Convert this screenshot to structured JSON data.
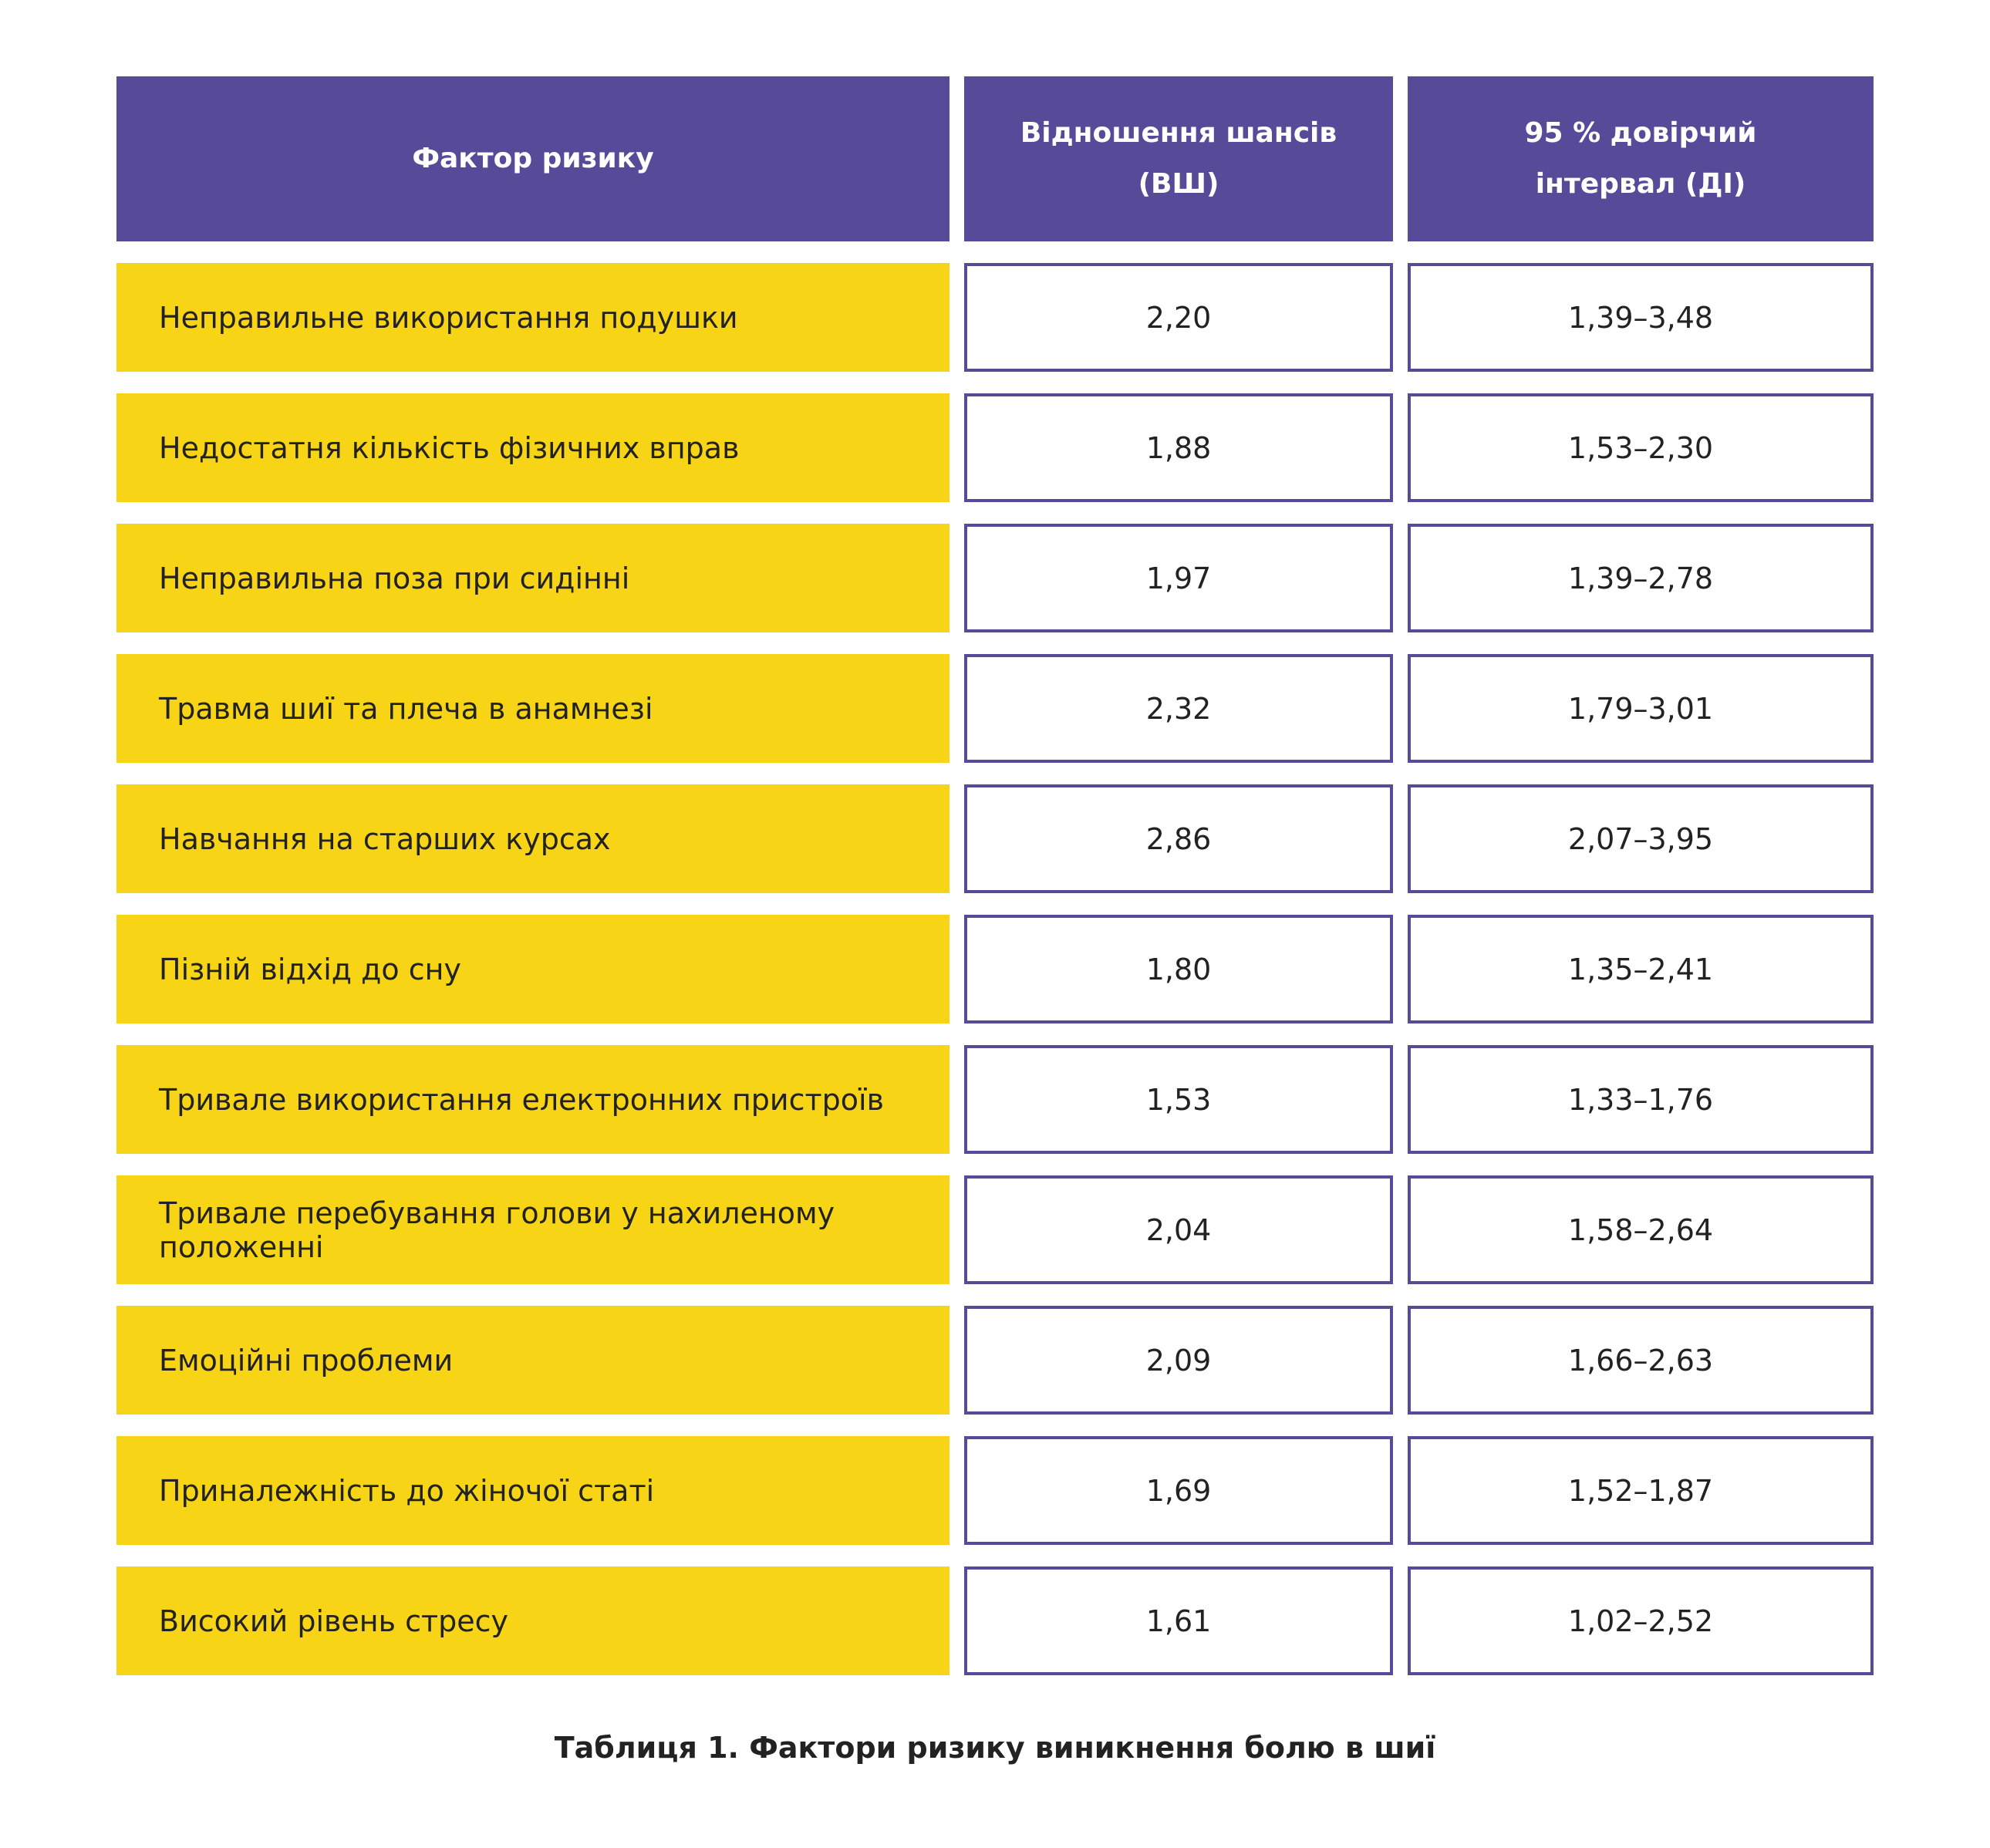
{
  "table": {
    "header": [
      [
        "Фактор ризику"
      ],
      [
        "Відношення шансів",
        "(ВШ)"
      ],
      [
        "95 % довірчий",
        "інтервал (ДІ)"
      ]
    ],
    "rows": [
      [
        "Неправильне використання подушки",
        "2,20",
        "1,39–3,48"
      ],
      [
        "Недостатня кількість фізичних вправ",
        "1,88",
        "1,53–2,30"
      ],
      [
        "Неправильна поза при сидінні",
        "1,97",
        "1,39–2,78"
      ],
      [
        "Травма шиї та плеча в анамнезі",
        "2,32",
        "1,79–3,01"
      ],
      [
        "Навчання на старших курсах",
        "2,86",
        "2,07–3,95"
      ],
      [
        "Пізній відхід до сну",
        "1,80",
        "1,35–2,41"
      ],
      [
        "Тривале використання електронних пристроїв",
        "1,53",
        "1,33–1,76"
      ],
      [
        "Тривале перебування голови у нахиленому положенні",
        "2,04",
        "1,58–2,64"
      ],
      [
        "Емоційні проблеми",
        "2,09",
        "1,66–2,63"
      ],
      [
        "Приналежність до жіночої статі",
        "1,69",
        "1,52–1,87"
      ],
      [
        "Високий рівень стресу",
        "1,61",
        "1,02–2,52"
      ]
    ]
  },
  "caption": "Таблиця 1. Фактори ризику виникнення болю в шиї"
}
